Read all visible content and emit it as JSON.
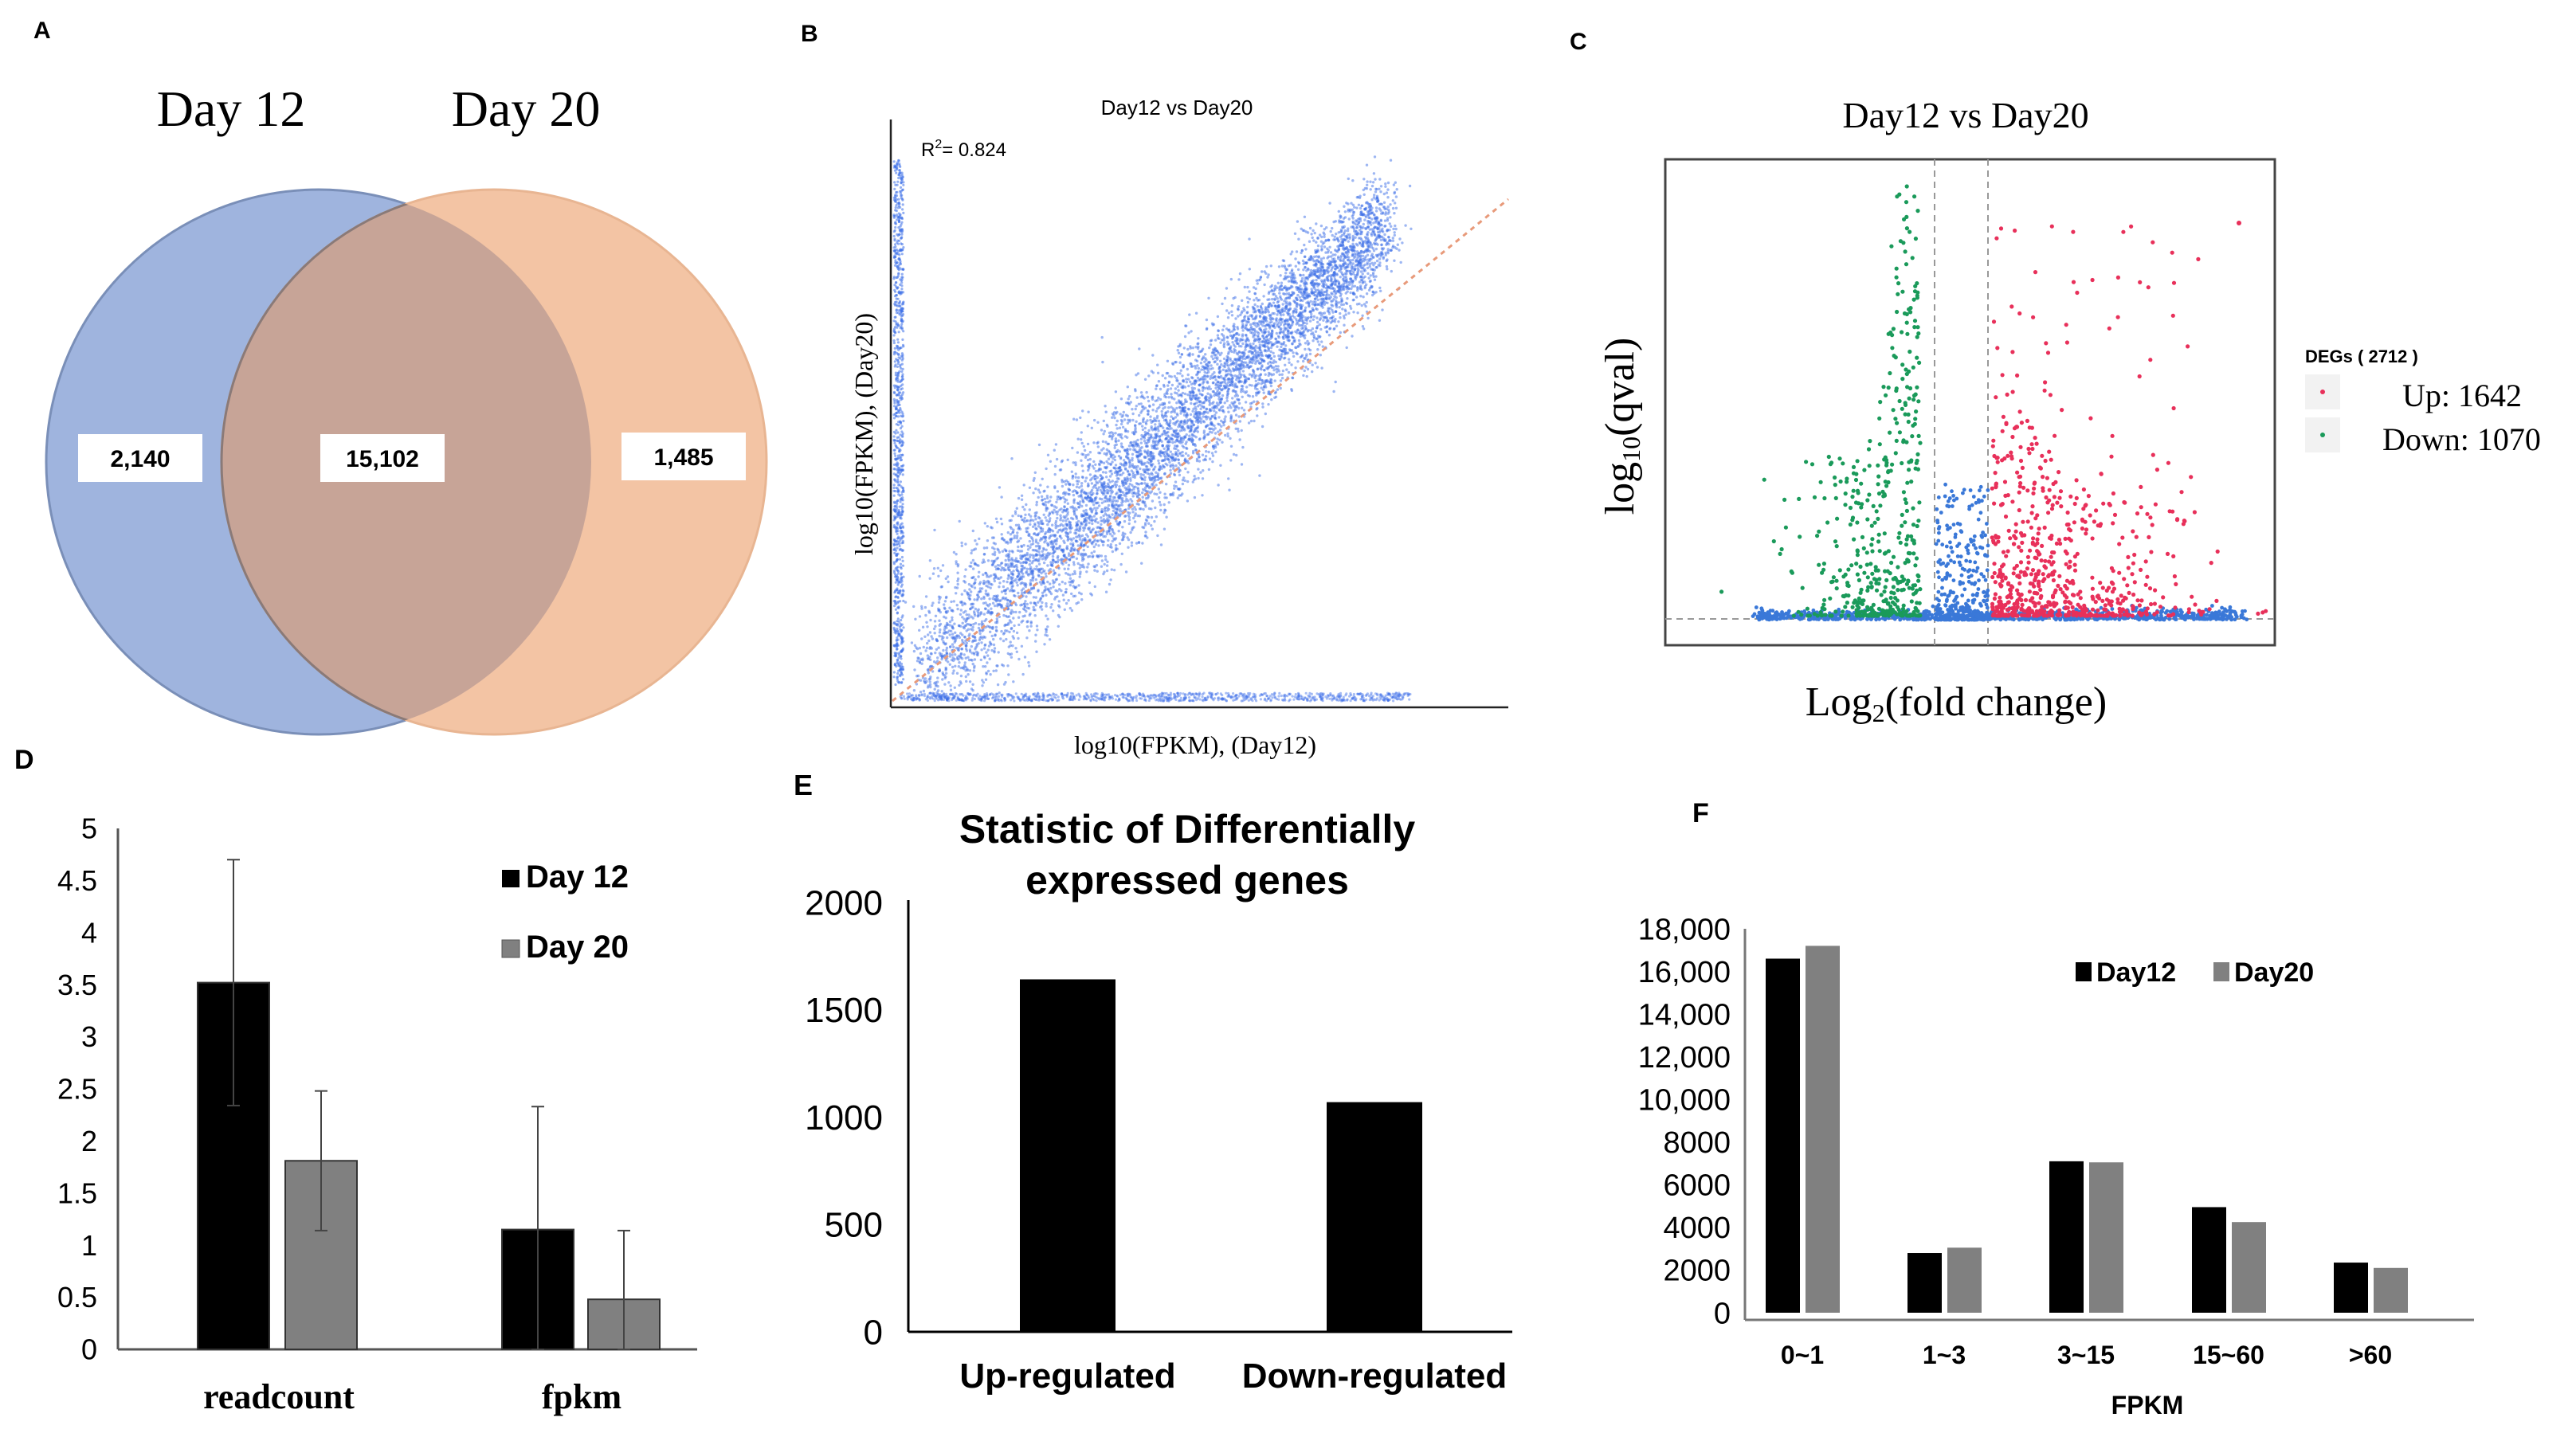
{
  "colors": {
    "venn_left": "#9fb4de",
    "venn_right": "#f3c4a4",
    "venn_overlap": "#c7a497",
    "scatter_point": "#3d6fe8",
    "volcano_up": "#e8305a",
    "volcano_down": "#1a9a5a",
    "volcano_ns": "#3a78d8",
    "bar_dark": "#000000",
    "bar_gray": "#808080",
    "trend_line": "#e89a7a"
  },
  "chart_data": [
    {
      "panel": "A",
      "type": "venn",
      "sets": [
        "Day 12",
        "Day 20"
      ],
      "regions": [
        {
          "label": "Day 12 only",
          "value": "2,140"
        },
        {
          "label": "Both",
          "value": "15,102"
        },
        {
          "label": "Day 20 only",
          "value": "1,485"
        }
      ]
    },
    {
      "panel": "B",
      "type": "scatter",
      "title": "Day12  vs  Day20",
      "r2_prefix": "R",
      "r2_sup": "2",
      "r2_value": "= 0.824",
      "xlabel": "log10(FPKM), (Day12)",
      "ylabel": "log10(FPKM), (Day20)",
      "r2": 0.824
    },
    {
      "panel": "C",
      "type": "scatter",
      "title": "Day12  vs Day20",
      "xlabel_prefix": "Log",
      "xlabel_sub": "2",
      "xlabel_suffix": "(fold change)",
      "ylabel_prefix": "log",
      "ylabel_sub": "10",
      "ylabel_suffix": "(qval)",
      "legend_title": "DEGs ( 2712 )",
      "legend": [
        {
          "name": "Up: 1642",
          "count": 1642
        },
        {
          "name": "Down: 1070",
          "count": 1070
        }
      ]
    },
    {
      "panel": "D",
      "type": "bar",
      "categories": [
        "readcount",
        "fpkm"
      ],
      "series": [
        {
          "name": "Day 12",
          "values": [
            3.52,
            1.15
          ],
          "errors": [
            1.18,
            1.18
          ]
        },
        {
          "name": "Day 20",
          "values": [
            1.81,
            0.48
          ],
          "errors": [
            0.67,
            0.66
          ]
        }
      ],
      "ylim": [
        0,
        5
      ],
      "yticks": [
        "0",
        "0.5",
        "1",
        "1.5",
        "2",
        "2.5",
        "3",
        "3.5",
        "4",
        "4.5",
        "5"
      ]
    },
    {
      "panel": "E",
      "type": "bar",
      "title_line1": "Statistic of Differentially",
      "title_line2": "expressed genes",
      "categories": [
        "Up-regulated",
        "Down-regulated"
      ],
      "values": [
        1642,
        1070
      ],
      "ylim": [
        0,
        2000
      ],
      "yticks": [
        "0",
        "500",
        "1000",
        "1500",
        "2000"
      ]
    },
    {
      "panel": "F",
      "type": "bar",
      "categories": [
        "0~1",
        "1~3",
        "3~15",
        "15~60",
        ">60"
      ],
      "series": [
        {
          "name": "Day12",
          "values": [
            16600,
            2800,
            7100,
            4950,
            2350
          ]
        },
        {
          "name": "Day20",
          "values": [
            17200,
            3050,
            7050,
            4250,
            2100
          ]
        }
      ],
      "xlabel": "FPKM",
      "ylim": [
        0,
        18000
      ],
      "yticks": [
        "0",
        "2000",
        "4000",
        "6000",
        "8000",
        "10,000",
        "12,000",
        "14,000",
        "16,000",
        "18,000"
      ]
    }
  ],
  "panel_labels": {
    "a": "A",
    "b": "B",
    "c": "C",
    "d": "D",
    "e": "E",
    "f": "F"
  }
}
